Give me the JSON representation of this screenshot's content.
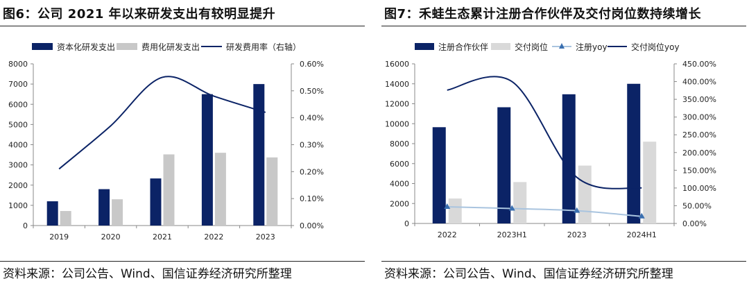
{
  "colors": {
    "navy": "#0b2366",
    "gray": "#c8c8c8",
    "lightblue": "#a9c4df",
    "axis": "#888888"
  },
  "panels": [
    {
      "title": "图6：公司 2021 年以来研发支出有较明显提升",
      "source": "资料来源：公司公告、Wind、国信证券经济研究所整理"
    },
    {
      "title": "图7：禾蛙生态累计注册合作伙伴及交付岗位数持续增长",
      "source": "资料来源：公司公告、Wind、国信证券经济研究所整理"
    }
  ],
  "chart_data": [
    {
      "type": "bar",
      "title": "图6：公司 2021 年以来研发支出有较明显提升",
      "categories": [
        "2019",
        "2020",
        "2021",
        "2022",
        "2023"
      ],
      "series": [
        {
          "name": "资本化研发支出",
          "type": "bar",
          "axis": "left",
          "color": "#0b2366",
          "values": [
            1200,
            1800,
            2330,
            6500,
            7000
          ]
        },
        {
          "name": "费用化研发支出",
          "type": "bar",
          "axis": "left",
          "color": "#c8c8c8",
          "values": [
            720,
            1300,
            3520,
            3600,
            3370
          ]
        },
        {
          "name": "研发费用率（右轴）",
          "type": "line",
          "axis": "right",
          "color": "#0b2366",
          "values": [
            0.21,
            0.37,
            0.55,
            0.48,
            0.42
          ]
        }
      ],
      "ylim": [
        0,
        8000
      ],
      "yticks": [
        "0",
        "1000",
        "2000",
        "3000",
        "4000",
        "5000",
        "6000",
        "7000",
        "8000"
      ],
      "y2lim": [
        0,
        0.6
      ],
      "y2ticks": [
        "0.00%",
        "0.10%",
        "0.20%",
        "0.30%",
        "0.40%",
        "0.50%",
        "0.60%"
      ],
      "grid": false,
      "legend": "top"
    },
    {
      "type": "bar",
      "title": "图7：禾蛙生态累计注册合作伙伴及交付岗位数持续增长",
      "categories": [
        "2022",
        "2023H1",
        "2023",
        "2024H1"
      ],
      "series": [
        {
          "name": "注册合作伙伴",
          "type": "bar",
          "axis": "left",
          "color": "#0b2366",
          "values": [
            9650,
            11650,
            12950,
            14000
          ]
        },
        {
          "name": "交付岗位",
          "type": "bar",
          "axis": "left",
          "color": "#d9d9d9",
          "values": [
            2500,
            4150,
            5800,
            8200
          ]
        },
        {
          "name": "注册yoy",
          "type": "line",
          "axis": "right",
          "color": "#a9c4df",
          "marker": "triangle",
          "values": [
            47,
            42,
            36,
            20
          ]
        },
        {
          "name": "交付岗位yoy",
          "type": "line",
          "axis": "right",
          "color": "#0b2366",
          "values": [
            376,
            400,
            130,
            100
          ]
        }
      ],
      "ylim": [
        0,
        16000
      ],
      "yticks": [
        "0",
        "2000",
        "4000",
        "6000",
        "8000",
        "10000",
        "12000",
        "14000",
        "16000"
      ],
      "y2lim": [
        0,
        450
      ],
      "y2ticks": [
        "0.00%",
        "50.00%",
        "100.00%",
        "150.00%",
        "200.00%",
        "250.00%",
        "300.00%",
        "350.00%",
        "400.00%",
        "450.00%"
      ],
      "grid": false,
      "legend": "top"
    }
  ]
}
